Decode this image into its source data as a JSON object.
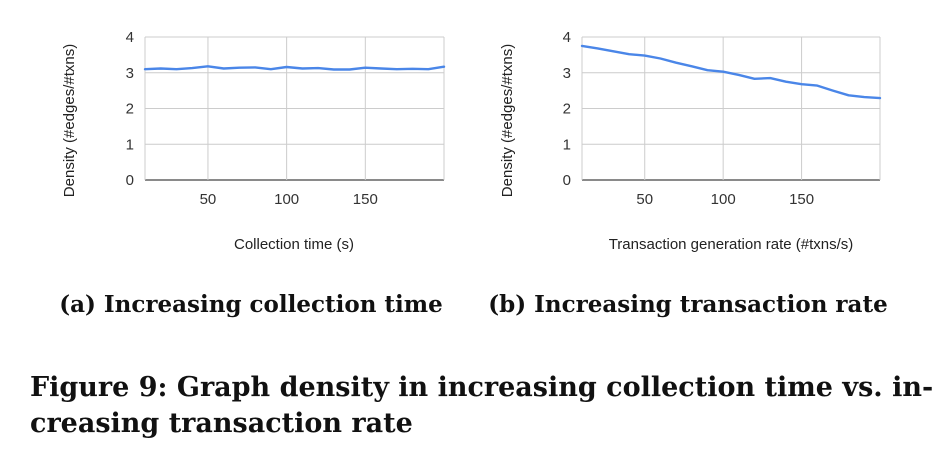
{
  "figure": {
    "caption_line1": "Figure 9: Graph density in increasing collection time vs. in-",
    "caption_line2": "creasing transaction rate"
  },
  "chart_data": [
    {
      "type": "line",
      "subcaption": "(a) Increasing collection time",
      "xlabel": "Collection time (s)",
      "ylabel": "Density (#edges/#txns)",
      "xlim": [
        10,
        200
      ],
      "ylim": [
        0,
        4
      ],
      "xticks": [
        50,
        100,
        150
      ],
      "yticks": [
        0,
        1,
        2,
        3,
        4
      ],
      "grid": true,
      "line_color": "#4a86e8",
      "series": [
        {
          "x": [
            10,
            20,
            30,
            40,
            50,
            60,
            70,
            80,
            90,
            100,
            110,
            120,
            130,
            140,
            150,
            160,
            170,
            180,
            190,
            200
          ],
          "values": [
            3.1,
            3.12,
            3.1,
            3.13,
            3.18,
            3.12,
            3.14,
            3.15,
            3.1,
            3.16,
            3.12,
            3.13,
            3.09,
            3.09,
            3.14,
            3.12,
            3.1,
            3.11,
            3.1,
            3.17
          ]
        }
      ]
    },
    {
      "type": "line",
      "subcaption": "(b) Increasing transaction rate",
      "xlabel": "Transaction generation rate (#txns/s)",
      "ylabel": "Density (#edges/#txns)",
      "xlim": [
        10,
        200
      ],
      "ylim": [
        0,
        4
      ],
      "xticks": [
        50,
        100,
        150
      ],
      "yticks": [
        0,
        1,
        2,
        3,
        4
      ],
      "grid": true,
      "line_color": "#4a86e8",
      "series": [
        {
          "x": [
            10,
            20,
            30,
            40,
            50,
            60,
            70,
            80,
            90,
            100,
            110,
            120,
            130,
            140,
            150,
            160,
            170,
            180,
            190,
            200
          ],
          "values": [
            3.75,
            3.68,
            3.6,
            3.52,
            3.48,
            3.4,
            3.28,
            3.18,
            3.07,
            3.03,
            2.94,
            2.83,
            2.85,
            2.75,
            2.68,
            2.64,
            2.5,
            2.37,
            2.32,
            2.29
          ]
        }
      ]
    }
  ]
}
